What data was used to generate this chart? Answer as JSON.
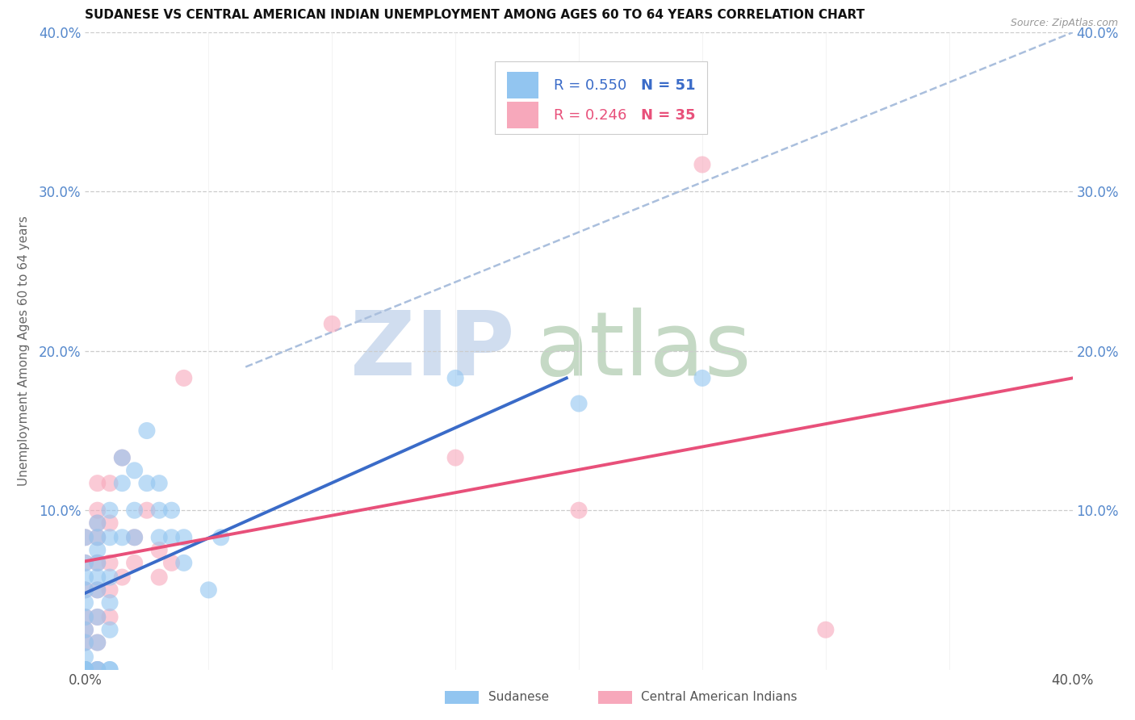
{
  "title": "SUDANESE VS CENTRAL AMERICAN INDIAN UNEMPLOYMENT AMONG AGES 60 TO 64 YEARS CORRELATION CHART",
  "source": "Source: ZipAtlas.com",
  "ylabel": "Unemployment Among Ages 60 to 64 years",
  "xlim": [
    0.0,
    0.4
  ],
  "ylim": [
    0.0,
    0.4
  ],
  "watermark_zip": "ZIP",
  "watermark_atlas": "atlas",
  "legend_r1": "0.550",
  "legend_n1": "51",
  "legend_r2": "0.246",
  "legend_n2": "35",
  "sudanese_color": "#92C5F0",
  "central_american_color": "#F7A8BB",
  "trend_blue_color": "#3A6BC8",
  "trend_pink_color": "#E8507A",
  "dashed_line_color": "#AABFDD",
  "tick_label_color": "#5588CC",
  "ylabel_color": "#666666",
  "sudanese_points": [
    [
      0.0,
      0.067
    ],
    [
      0.0,
      0.05
    ],
    [
      0.0,
      0.033
    ],
    [
      0.0,
      0.025
    ],
    [
      0.0,
      0.017
    ],
    [
      0.0,
      0.083
    ],
    [
      0.0,
      0.042
    ],
    [
      0.0,
      0.008
    ],
    [
      0.0,
      0.0
    ],
    [
      0.0,
      0.0
    ],
    [
      0.0,
      0.058
    ],
    [
      0.0,
      0.0
    ],
    [
      0.0,
      0.0
    ],
    [
      0.0,
      0.0
    ],
    [
      0.005,
      0.083
    ],
    [
      0.005,
      0.067
    ],
    [
      0.005,
      0.05
    ],
    [
      0.005,
      0.092
    ],
    [
      0.005,
      0.075
    ],
    [
      0.005,
      0.058
    ],
    [
      0.005,
      0.033
    ],
    [
      0.005,
      0.017
    ],
    [
      0.005,
      0.0
    ],
    [
      0.005,
      0.0
    ],
    [
      0.01,
      0.1
    ],
    [
      0.01,
      0.083
    ],
    [
      0.01,
      0.058
    ],
    [
      0.01,
      0.042
    ],
    [
      0.01,
      0.025
    ],
    [
      0.01,
      0.0
    ],
    [
      0.015,
      0.133
    ],
    [
      0.015,
      0.117
    ],
    [
      0.015,
      0.083
    ],
    [
      0.02,
      0.125
    ],
    [
      0.02,
      0.083
    ],
    [
      0.02,
      0.1
    ],
    [
      0.025,
      0.15
    ],
    [
      0.025,
      0.117
    ],
    [
      0.03,
      0.117
    ],
    [
      0.03,
      0.1
    ],
    [
      0.03,
      0.083
    ],
    [
      0.035,
      0.1
    ],
    [
      0.035,
      0.083
    ],
    [
      0.04,
      0.083
    ],
    [
      0.04,
      0.067
    ],
    [
      0.05,
      0.05
    ],
    [
      0.055,
      0.083
    ],
    [
      0.01,
      0.0
    ],
    [
      0.15,
      0.183
    ],
    [
      0.2,
      0.167
    ],
    [
      0.25,
      0.183
    ]
  ],
  "central_american_points": [
    [
      0.0,
      0.067
    ],
    [
      0.0,
      0.05
    ],
    [
      0.0,
      0.083
    ],
    [
      0.0,
      0.033
    ],
    [
      0.0,
      0.017
    ],
    [
      0.0,
      0.0
    ],
    [
      0.0,
      0.025
    ],
    [
      0.005,
      0.1
    ],
    [
      0.005,
      0.117
    ],
    [
      0.005,
      0.092
    ],
    [
      0.005,
      0.083
    ],
    [
      0.005,
      0.067
    ],
    [
      0.005,
      0.05
    ],
    [
      0.005,
      0.033
    ],
    [
      0.005,
      0.017
    ],
    [
      0.005,
      0.0
    ],
    [
      0.01,
      0.117
    ],
    [
      0.01,
      0.092
    ],
    [
      0.01,
      0.067
    ],
    [
      0.01,
      0.05
    ],
    [
      0.01,
      0.033
    ],
    [
      0.015,
      0.133
    ],
    [
      0.015,
      0.058
    ],
    [
      0.02,
      0.083
    ],
    [
      0.02,
      0.067
    ],
    [
      0.025,
      0.1
    ],
    [
      0.03,
      0.075
    ],
    [
      0.03,
      0.058
    ],
    [
      0.035,
      0.067
    ],
    [
      0.04,
      0.183
    ],
    [
      0.1,
      0.217
    ],
    [
      0.15,
      0.133
    ],
    [
      0.2,
      0.1
    ],
    [
      0.3,
      0.025
    ],
    [
      0.25,
      0.317
    ]
  ],
  "blue_trend_x": [
    0.0,
    0.195
  ],
  "blue_trend_y": [
    0.048,
    0.183
  ],
  "pink_trend_x": [
    0.0,
    0.4
  ],
  "pink_trend_y": [
    0.068,
    0.183
  ],
  "dashed_trend_x": [
    0.065,
    0.4
  ],
  "dashed_trend_y": [
    0.19,
    0.4
  ],
  "ytick_positions": [
    0.0,
    0.1,
    0.2,
    0.3,
    0.4
  ],
  "ytick_labels": [
    "",
    "10.0%",
    "20.0%",
    "30.0%",
    "40.0%"
  ],
  "xtick_positions": [
    0.0,
    0.05,
    0.1,
    0.15,
    0.2,
    0.25,
    0.3,
    0.35,
    0.4
  ],
  "xtick_labels": [
    "0.0%",
    "",
    "",
    "",
    "",
    "",
    "",
    "",
    "40.0%"
  ]
}
